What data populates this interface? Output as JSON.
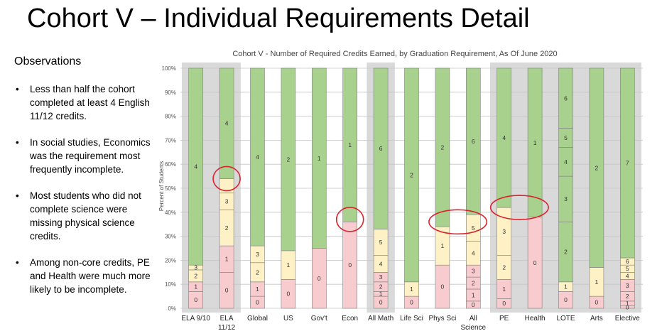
{
  "slide": {
    "title": "Cohort V – Individual Requirements Detail",
    "observations_heading": "Observations",
    "observations": [
      "Less than half the cohort completed at least 4 English 11/12 credits.",
      "In social studies, Economics was the requirement most frequently incomplete.",
      "Most students who did not complete science were missing physical science credits.",
      "Among non-core credits, PE and Health were much more likely to be incomplete."
    ]
  },
  "chart_data": {
    "type": "bar",
    "stacked": true,
    "title": "Cohort V - Number of Required Credits Earned, by Graduation Requirement, As Of June 2020",
    "ylabel": "Percent of Students",
    "ylim": [
      0,
      100
    ],
    "y_ticks": [
      "0%",
      "10%",
      "20%",
      "30%",
      "40%",
      "50%",
      "60%",
      "70%",
      "80%",
      "90%",
      "100%"
    ],
    "grid": true,
    "colors": {
      "pink": "#f8cbcf",
      "cream": "#fdf1c5",
      "green": "#a9d18e",
      "band": "#d9d9d9",
      "highlight": "#d9232d"
    },
    "bars": [
      {
        "name": "ELA 9/10",
        "label": [
          "ELA 9/10"
        ],
        "segments": [
          {
            "label": "0",
            "value": 7,
            "color": "pink"
          },
          {
            "label": "1",
            "value": 4,
            "color": "pink"
          },
          {
            "label": "2",
            "value": 5,
            "color": "cream"
          },
          {
            "label": "3",
            "value": 2,
            "color": "cream"
          },
          {
            "label": "4",
            "value": 82,
            "color": "green"
          }
        ]
      },
      {
        "name": "ELA 11/12",
        "label": [
          "ELA",
          "11/12"
        ],
        "segments": [
          {
            "label": "0",
            "value": 15,
            "color": "pink"
          },
          {
            "label": "1",
            "value": 11,
            "color": "pink"
          },
          {
            "label": "2",
            "value": 15,
            "color": "cream"
          },
          {
            "label": "3",
            "value": 7,
            "color": "cream"
          },
          {
            "label": "",
            "value": 6,
            "color": "cream"
          },
          {
            "label": "4",
            "value": 46,
            "color": "green"
          }
        ]
      },
      {
        "name": "Global",
        "label": [
          "Global"
        ],
        "segments": [
          {
            "label": "0",
            "value": 5,
            "color": "pink"
          },
          {
            "label": "1",
            "value": 6,
            "color": "pink"
          },
          {
            "label": "2",
            "value": 8,
            "color": "cream"
          },
          {
            "label": "3",
            "value": 7,
            "color": "cream"
          },
          {
            "label": "4",
            "value": 74,
            "color": "green"
          }
        ]
      },
      {
        "name": "US",
        "label": [
          "US"
        ],
        "segments": [
          {
            "label": "0",
            "value": 12,
            "color": "pink"
          },
          {
            "label": "1",
            "value": 12,
            "color": "cream"
          },
          {
            "label": "2",
            "value": 76,
            "color": "green"
          }
        ]
      },
      {
        "name": "Gov't",
        "label": [
          "Gov't"
        ],
        "segments": [
          {
            "label": "0",
            "value": 25,
            "color": "pink"
          },
          {
            "label": "1",
            "value": 75,
            "color": "green"
          }
        ]
      },
      {
        "name": "Econ",
        "label": [
          "Econ"
        ],
        "segments": [
          {
            "label": "0",
            "value": 36,
            "color": "pink"
          },
          {
            "label": "1",
            "value": 64,
            "color": "green"
          }
        ]
      },
      {
        "name": "All Math",
        "label": [
          "All Math"
        ],
        "segments": [
          {
            "label": "0",
            "value": 5,
            "color": "pink"
          },
          {
            "label": "1",
            "value": 2,
            "color": "pink"
          },
          {
            "label": "2",
            "value": 4,
            "color": "pink"
          },
          {
            "label": "3",
            "value": 4,
            "color": "pink"
          },
          {
            "label": "4",
            "value": 7,
            "color": "cream"
          },
          {
            "label": "5",
            "value": 11,
            "color": "cream"
          },
          {
            "label": "6",
            "value": 67,
            "color": "green"
          }
        ]
      },
      {
        "name": "Life Sci",
        "label": [
          "Life Sci"
        ],
        "segments": [
          {
            "label": "0",
            "value": 5,
            "color": "pink"
          },
          {
            "label": "1",
            "value": 6,
            "color": "cream"
          },
          {
            "label": "2",
            "value": 89,
            "color": "green"
          }
        ]
      },
      {
        "name": "Phys Sci",
        "label": [
          "Phys Sci"
        ],
        "segments": [
          {
            "label": "0",
            "value": 18,
            "color": "pink"
          },
          {
            "label": "1",
            "value": 16,
            "color": "cream"
          },
          {
            "label": "2",
            "value": 66,
            "color": "green"
          }
        ]
      },
      {
        "name": "All Science",
        "label": [
          "All",
          "Science"
        ],
        "segments": [
          {
            "label": "0",
            "value": 3,
            "color": "pink"
          },
          {
            "label": "1",
            "value": 5,
            "color": "pink"
          },
          {
            "label": "2",
            "value": 5,
            "color": "pink"
          },
          {
            "label": "3",
            "value": 5,
            "color": "pink"
          },
          {
            "label": "4",
            "value": 10,
            "color": "cream"
          },
          {
            "label": "5",
            "value": 11,
            "color": "cream"
          },
          {
            "label": "6",
            "value": 61,
            "color": "green"
          }
        ]
      },
      {
        "name": "PE",
        "label": [
          "PE"
        ],
        "segments": [
          {
            "label": "0",
            "value": 4,
            "color": "pink"
          },
          {
            "label": "1",
            "value": 8,
            "color": "pink"
          },
          {
            "label": "2",
            "value": 10,
            "color": "cream"
          },
          {
            "label": "3",
            "value": 20,
            "color": "cream"
          },
          {
            "label": "4",
            "value": 58,
            "color": "green"
          }
        ]
      },
      {
        "name": "Health",
        "label": [
          "Health"
        ],
        "segments": [
          {
            "label": "0",
            "value": 38,
            "color": "pink"
          },
          {
            "label": "1",
            "value": 62,
            "color": "green"
          }
        ]
      },
      {
        "name": "LOTE",
        "label": [
          "LOTE"
        ],
        "segments": [
          {
            "label": "0",
            "value": 7,
            "color": "pink"
          },
          {
            "label": "1",
            "value": 4,
            "color": "cream"
          },
          {
            "label": "2",
            "value": 25,
            "color": "green"
          },
          {
            "label": "3",
            "value": 19,
            "color": "green"
          },
          {
            "label": "4",
            "value": 12,
            "color": "green"
          },
          {
            "label": "5",
            "value": 8,
            "color": "green"
          },
          {
            "label": "6",
            "value": 25,
            "color": "green"
          }
        ]
      },
      {
        "name": "Arts",
        "label": [
          "Arts"
        ],
        "segments": [
          {
            "label": "0",
            "value": 5,
            "color": "pink"
          },
          {
            "label": "1",
            "value": 12,
            "color": "cream"
          },
          {
            "label": "2",
            "value": 83,
            "color": "green"
          }
        ]
      },
      {
        "name": "Elective",
        "label": [
          "Elective"
        ],
        "segments": [
          {
            "label": "0",
            "value": 1,
            "color": "pink"
          },
          {
            "label": "1",
            "value": 2,
            "color": "pink"
          },
          {
            "label": "2",
            "value": 4,
            "color": "pink"
          },
          {
            "label": "3",
            "value": 5,
            "color": "pink"
          },
          {
            "label": "4",
            "value": 3,
            "color": "cream"
          },
          {
            "label": "5",
            "value": 3,
            "color": "cream"
          },
          {
            "label": "6",
            "value": 3,
            "color": "cream"
          },
          {
            "label": "7",
            "value": 79,
            "color": "green"
          }
        ]
      }
    ],
    "shaded_groups": [
      [
        "ELA 9/10",
        "ELA 11/12"
      ],
      [
        "All Math"
      ],
      [
        "PE",
        "Health",
        "LOTE",
        "Arts",
        "Elective"
      ]
    ],
    "highlights": [
      {
        "bar": "ELA 11/12",
        "at_value": 54
      },
      {
        "bar": "Econ",
        "at_value": 37
      },
      {
        "bar": "Phys Sci",
        "at_value": 36,
        "span_to": "All Science"
      },
      {
        "bar": "PE",
        "at_value": 42,
        "span_to": "Health"
      }
    ]
  }
}
